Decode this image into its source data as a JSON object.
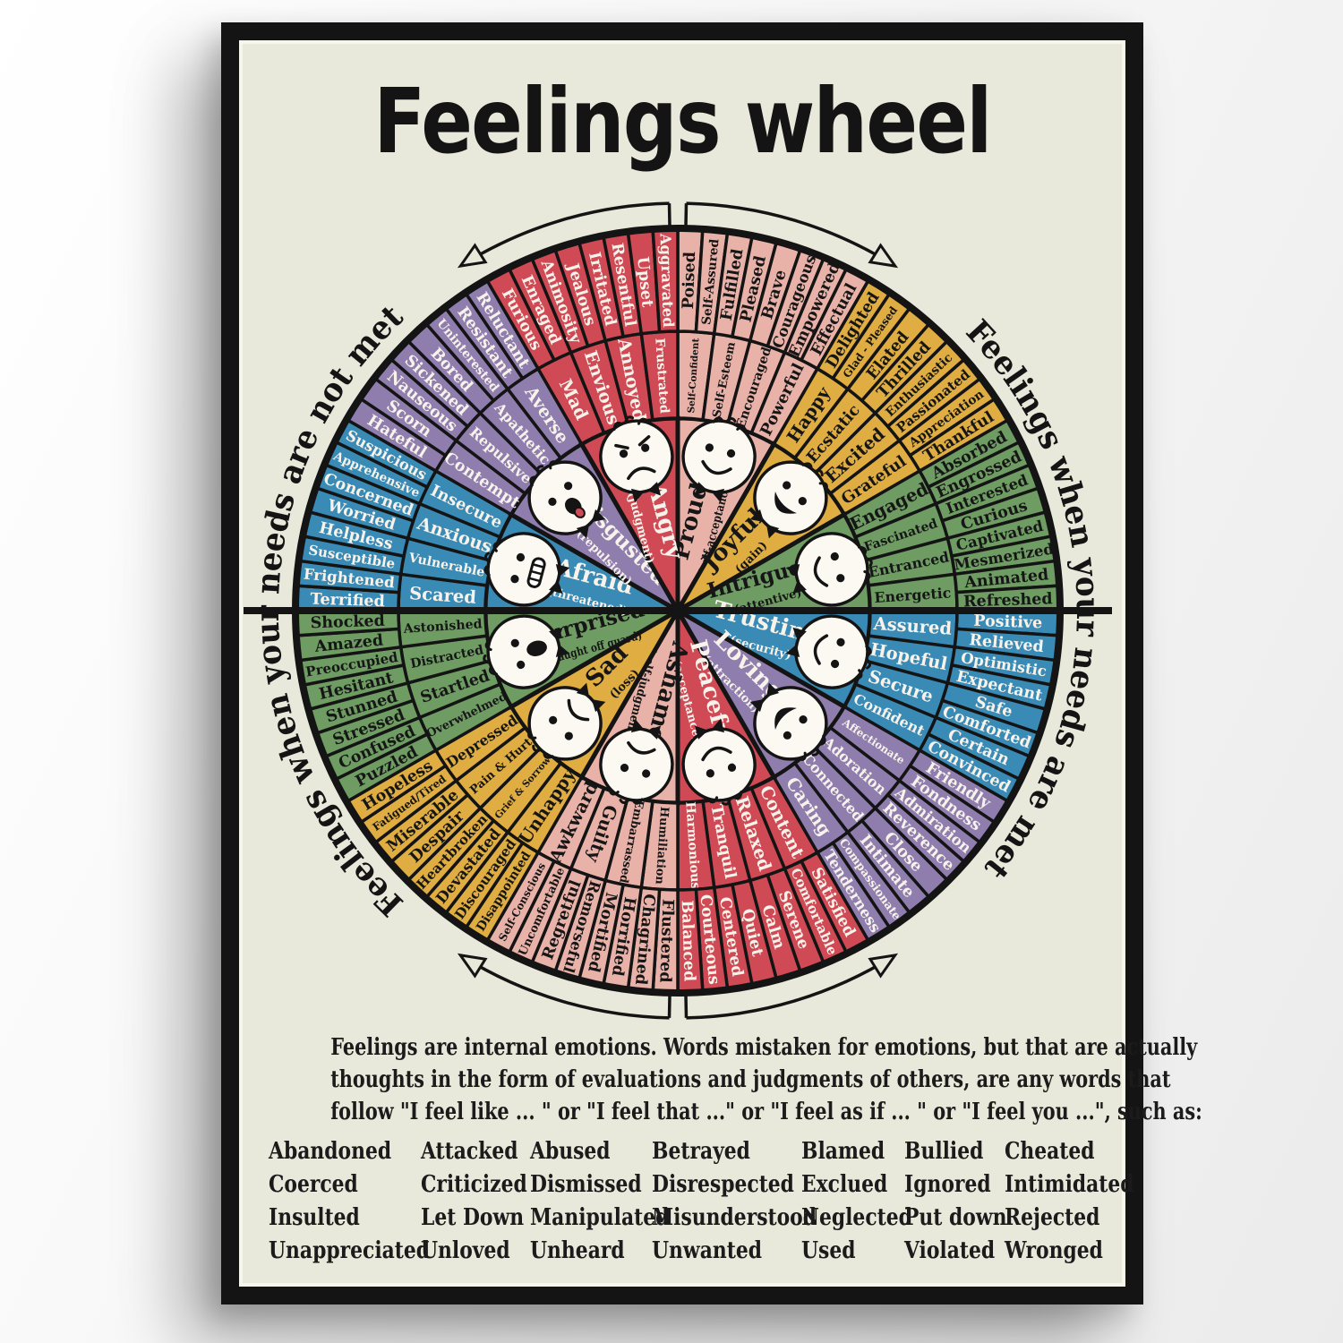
{
  "poster": {
    "title": "Feelings wheel",
    "side_label_left": "Feelings when your needs are not met",
    "side_label_right": "Feelings when your needs are met",
    "footer": {
      "paragraph_lines": [
        "Feelings are internal emotions. Words mistaken for emotions, but that are actually",
        "thoughts in the form of evaluations and judgments of others, are any words that",
        "follow \"I feel like ... \" or \"I feel that ...\" or \"I feel as if ... \" or \"I feel you ...\", such as:"
      ],
      "word_grid": [
        [
          "Abandoned",
          "Attacked",
          "Abused",
          "Betrayed",
          "Blamed",
          "Bullied",
          "Cheated"
        ],
        [
          "Coerced",
          "Criticized",
          "Dismissed",
          "Disrespected",
          "Exclued",
          "Ignored",
          "Intimidated"
        ],
        [
          "Insulted",
          "Let Down",
          "Manipulated",
          "Misunderstood",
          "Neglected",
          "Put down",
          "Rejected"
        ],
        [
          "Unappreciated",
          "Unloved",
          "Unheard",
          "Unwanted",
          "Used",
          "Violated",
          "Wronged"
        ]
      ]
    },
    "colors": {
      "background": "#e8e9da",
      "frame": "#141414",
      "ink": "#141414",
      "paper_white": "#f6f6ea",
      "red": "#cf4a55",
      "pink": "#e9b2a9",
      "gold": "#dfad41",
      "green": "#6e9c63",
      "blue": "#3a8ab6",
      "purple": "#8f7ead",
      "text_light": "#f7f2ea",
      "text_dark": "#161616",
      "face_fill": "#fbf9f1"
    },
    "wheel": {
      "segments": [
        {
          "name": "Proud",
          "qualifier": "(self-acceptance)",
          "color_key": "pink",
          "text": "dark",
          "expression": "smile",
          "middle": [
            "Self-Confident",
            "Self-Esteem",
            "Encouraged",
            "Powerful"
          ],
          "outer": [
            "Poised",
            "Self-Assured",
            "Fulfilled",
            "Pleased",
            "Brave",
            "Courageous",
            "Empowered",
            "Effectual"
          ]
        },
        {
          "name": "Joyful",
          "qualifier": "(gain)",
          "color_key": "gold",
          "text": "dark",
          "expression": "grin",
          "middle": [
            "Happy",
            "Ecstatic",
            "Excited",
            "Grateful"
          ],
          "outer": [
            "Delighted",
            "Glad - Pleased",
            "Elated",
            "Thrilled",
            "Enthusiastic",
            "Passionated",
            "Appreciation",
            "Thankful"
          ]
        },
        {
          "name": "Intrigued",
          "qualifier": "(attentive)",
          "color_key": "green",
          "text": "dark",
          "expression": "smile",
          "middle": [
            "Engaged",
            "Fascinated",
            "Entranced",
            "Energetic"
          ],
          "outer": [
            "Absorbed",
            "Engrossed",
            "Interested",
            "Curious",
            "Captivated",
            "Mesmerized",
            "Animated",
            "Refreshed"
          ]
        },
        {
          "name": "Trusting",
          "qualifier": "(security)",
          "color_key": "blue",
          "text": "light",
          "expression": "smile",
          "middle": [
            "Assured",
            "Hopeful",
            "Secure",
            "Confident"
          ],
          "outer": [
            "Positive",
            "Relieved",
            "Optimistic",
            "Expectant",
            "Safe",
            "Comforted",
            "Certain",
            "Convinced"
          ]
        },
        {
          "name": "Loving",
          "qualifier": "(attraction)",
          "color_key": "purple",
          "text": "light",
          "expression": "grin",
          "middle": [
            "Affectionate",
            "Adoration",
            "Connected",
            "Caring"
          ],
          "outer": [
            "Friendly",
            "Fondness",
            "Admiration",
            "Reverence",
            "Close",
            "Intimate",
            "Compassionate",
            "Tenderness"
          ]
        },
        {
          "name": "Peaceful",
          "qualifier": "(acceptance)",
          "color_key": "red",
          "text": "light",
          "expression": "smile",
          "middle": [
            "Content",
            "Relaxed",
            "Tranquil",
            "Harmonious"
          ],
          "outer": [
            "Satisfied",
            "Comfortable",
            "Serene",
            "Calm",
            "Quiet",
            "Centered",
            "Courteous",
            "Balanced"
          ]
        },
        {
          "name": "Ashamed",
          "qualifier": "(self-judgment)",
          "color_key": "pink",
          "text": "dark",
          "expression": "frown",
          "middle": [
            "Humiliation",
            "Embarrassed",
            "Guilty",
            "Awkward"
          ],
          "outer": [
            "Flustered",
            "Chagrined",
            "Horrified",
            "Mortified",
            "Remorseful",
            "Regretful",
            "Uncomfortable",
            "Self-Conscious"
          ]
        },
        {
          "name": "Sad",
          "qualifier": "(loss)",
          "color_key": "gold",
          "text": "dark",
          "expression": "frown",
          "middle": [
            "Unhappy",
            "Grief & Sorrow",
            "Pain & Hurt",
            "Depressed"
          ],
          "outer": [
            "Disappointed",
            "Discouraged",
            "Devastated",
            "Heartbroken",
            "Despair",
            "Miserable",
            "Fatigued/Tired",
            "Hopeless"
          ]
        },
        {
          "name": "Surprised",
          "qualifier": "(caught off guard)",
          "color_key": "green",
          "text": "dark",
          "expression": "open",
          "middle": [
            "Overwhelmed",
            "Startled",
            "Distracted",
            "Astonished"
          ],
          "outer": [
            "Puzzled",
            "Confused",
            "Stressed",
            "Stunned",
            "Hesitant",
            "Preoccupied",
            "Amazed",
            "Shocked"
          ]
        },
        {
          "name": "Afraid",
          "qualifier": "(threatened)",
          "color_key": "blue",
          "text": "light",
          "expression": "grimace",
          "middle": [
            "Scared",
            "Vulnerable",
            "Anxious",
            "Insecure"
          ],
          "outer": [
            "Terrified",
            "Frightened",
            "Susceptible",
            "Helpless",
            "Worried",
            "Concerned",
            "Apprehensive",
            "Suspicious"
          ]
        },
        {
          "name": "Disgusted",
          "qualifier": "(repulsion)",
          "color_key": "purple",
          "text": "light",
          "expression": "tongue",
          "middle": [
            "Contempt",
            "Repulsive",
            "Apathetic",
            "Averse"
          ],
          "outer": [
            "Hateful",
            "Scorn",
            "Nauseous",
            "Sickened",
            "Bored",
            "Uninterested",
            "Resistant",
            "Reluctant"
          ]
        },
        {
          "name": "Angry",
          "qualifier": "(judgment)",
          "color_key": "red",
          "text": "light",
          "expression": "angry",
          "middle": [
            "Mad",
            "Envious",
            "Annoyed",
            "Frustrated"
          ],
          "outer": [
            "Furious",
            "Enraged",
            "Animosity",
            "Jealous",
            "Irritated",
            "Resentful",
            "Upset",
            "Aggravated"
          ]
        }
      ]
    }
  }
}
